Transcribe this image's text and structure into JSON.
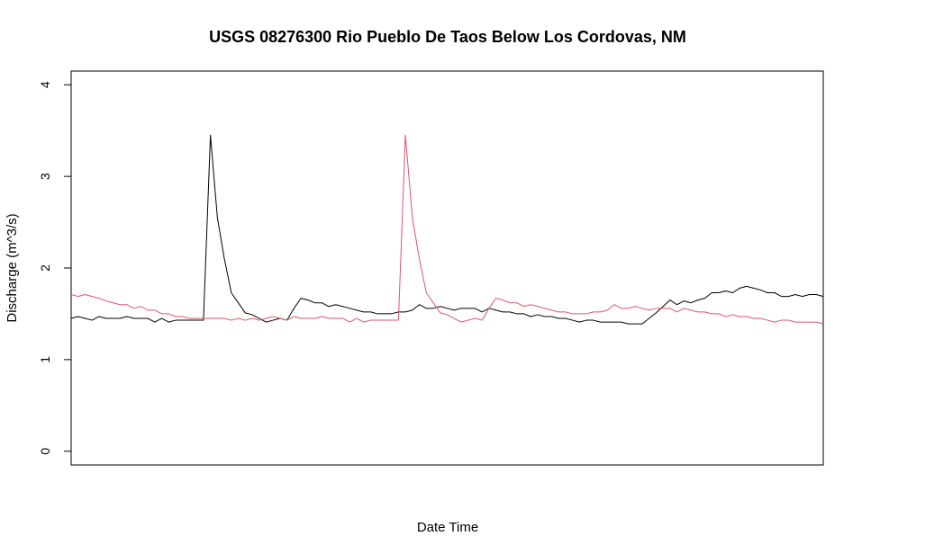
{
  "chart_data": {
    "type": "line",
    "title": "USGS 08276300 Rio Pueblo De Taos Below Los Cordovas, NM",
    "xlabel": "Date Time",
    "ylabel": "Discharge (m^3/s)",
    "ylim": [
      -0.15,
      4.15
    ],
    "y_ticks": [
      "0",
      "1",
      "2",
      "3",
      "4"
    ],
    "x_ticks": [],
    "grid": false,
    "legend": "none",
    "series": [
      {
        "color": "#000000",
        "values": [
          1.45,
          1.47,
          1.45,
          1.43,
          1.47,
          1.45,
          1.45,
          1.45,
          1.47,
          1.45,
          1.45,
          1.45,
          1.41,
          1.45,
          1.41,
          1.43,
          1.43,
          1.43,
          1.43,
          1.43,
          3.45,
          2.55,
          2.1,
          1.73,
          1.62,
          1.51,
          1.49,
          1.45,
          1.41,
          1.43,
          1.45,
          1.43,
          1.56,
          1.67,
          1.65,
          1.62,
          1.62,
          1.58,
          1.6,
          1.58,
          1.56,
          1.54,
          1.52,
          1.52,
          1.5,
          1.5,
          1.5,
          1.52,
          1.52,
          1.54,
          1.6,
          1.56,
          1.56,
          1.58,
          1.56,
          1.54,
          1.56,
          1.56,
          1.56,
          1.52,
          1.56,
          1.54,
          1.52,
          1.52,
          1.5,
          1.5,
          1.47,
          1.49,
          1.47,
          1.47,
          1.45,
          1.45,
          1.43,
          1.41,
          1.43,
          1.43,
          1.41,
          1.41,
          1.41,
          1.41,
          1.39,
          1.39,
          1.39,
          1.45,
          1.51,
          1.58,
          1.65,
          1.6,
          1.64,
          1.62,
          1.65,
          1.67,
          1.73,
          1.73,
          1.75,
          1.73,
          1.78,
          1.8,
          1.78,
          1.76,
          1.73,
          1.73,
          1.69,
          1.69,
          1.71,
          1.69,
          1.71,
          1.71,
          1.69
        ]
      },
      {
        "color": "#DF536B",
        "values": [
          1.71,
          1.69,
          1.71,
          1.69,
          1.67,
          1.64,
          1.62,
          1.6,
          1.6,
          1.56,
          1.58,
          1.54,
          1.54,
          1.5,
          1.5,
          1.47,
          1.47,
          1.45,
          1.45,
          1.45,
          1.45,
          1.45,
          1.45,
          1.43,
          1.45,
          1.43,
          1.45,
          1.43,
          1.45,
          1.47,
          1.45,
          1.43,
          1.47,
          1.45,
          1.45,
          1.45,
          1.47,
          1.45,
          1.45,
          1.45,
          1.41,
          1.45,
          1.41,
          1.43,
          1.43,
          1.43,
          1.43,
          1.43,
          3.45,
          2.55,
          2.1,
          1.73,
          1.62,
          1.51,
          1.49,
          1.45,
          1.41,
          1.43,
          1.45,
          1.43,
          1.56,
          1.67,
          1.65,
          1.62,
          1.62,
          1.58,
          1.6,
          1.58,
          1.56,
          1.54,
          1.52,
          1.52,
          1.5,
          1.5,
          1.5,
          1.52,
          1.52,
          1.54,
          1.6,
          1.56,
          1.56,
          1.58,
          1.56,
          1.54,
          1.56,
          1.56,
          1.56,
          1.52,
          1.56,
          1.54,
          1.52,
          1.52,
          1.5,
          1.5,
          1.47,
          1.49,
          1.47,
          1.47,
          1.45,
          1.45,
          1.43,
          1.41,
          1.43,
          1.43,
          1.41,
          1.41,
          1.41,
          1.41,
          1.39
        ]
      }
    ]
  }
}
